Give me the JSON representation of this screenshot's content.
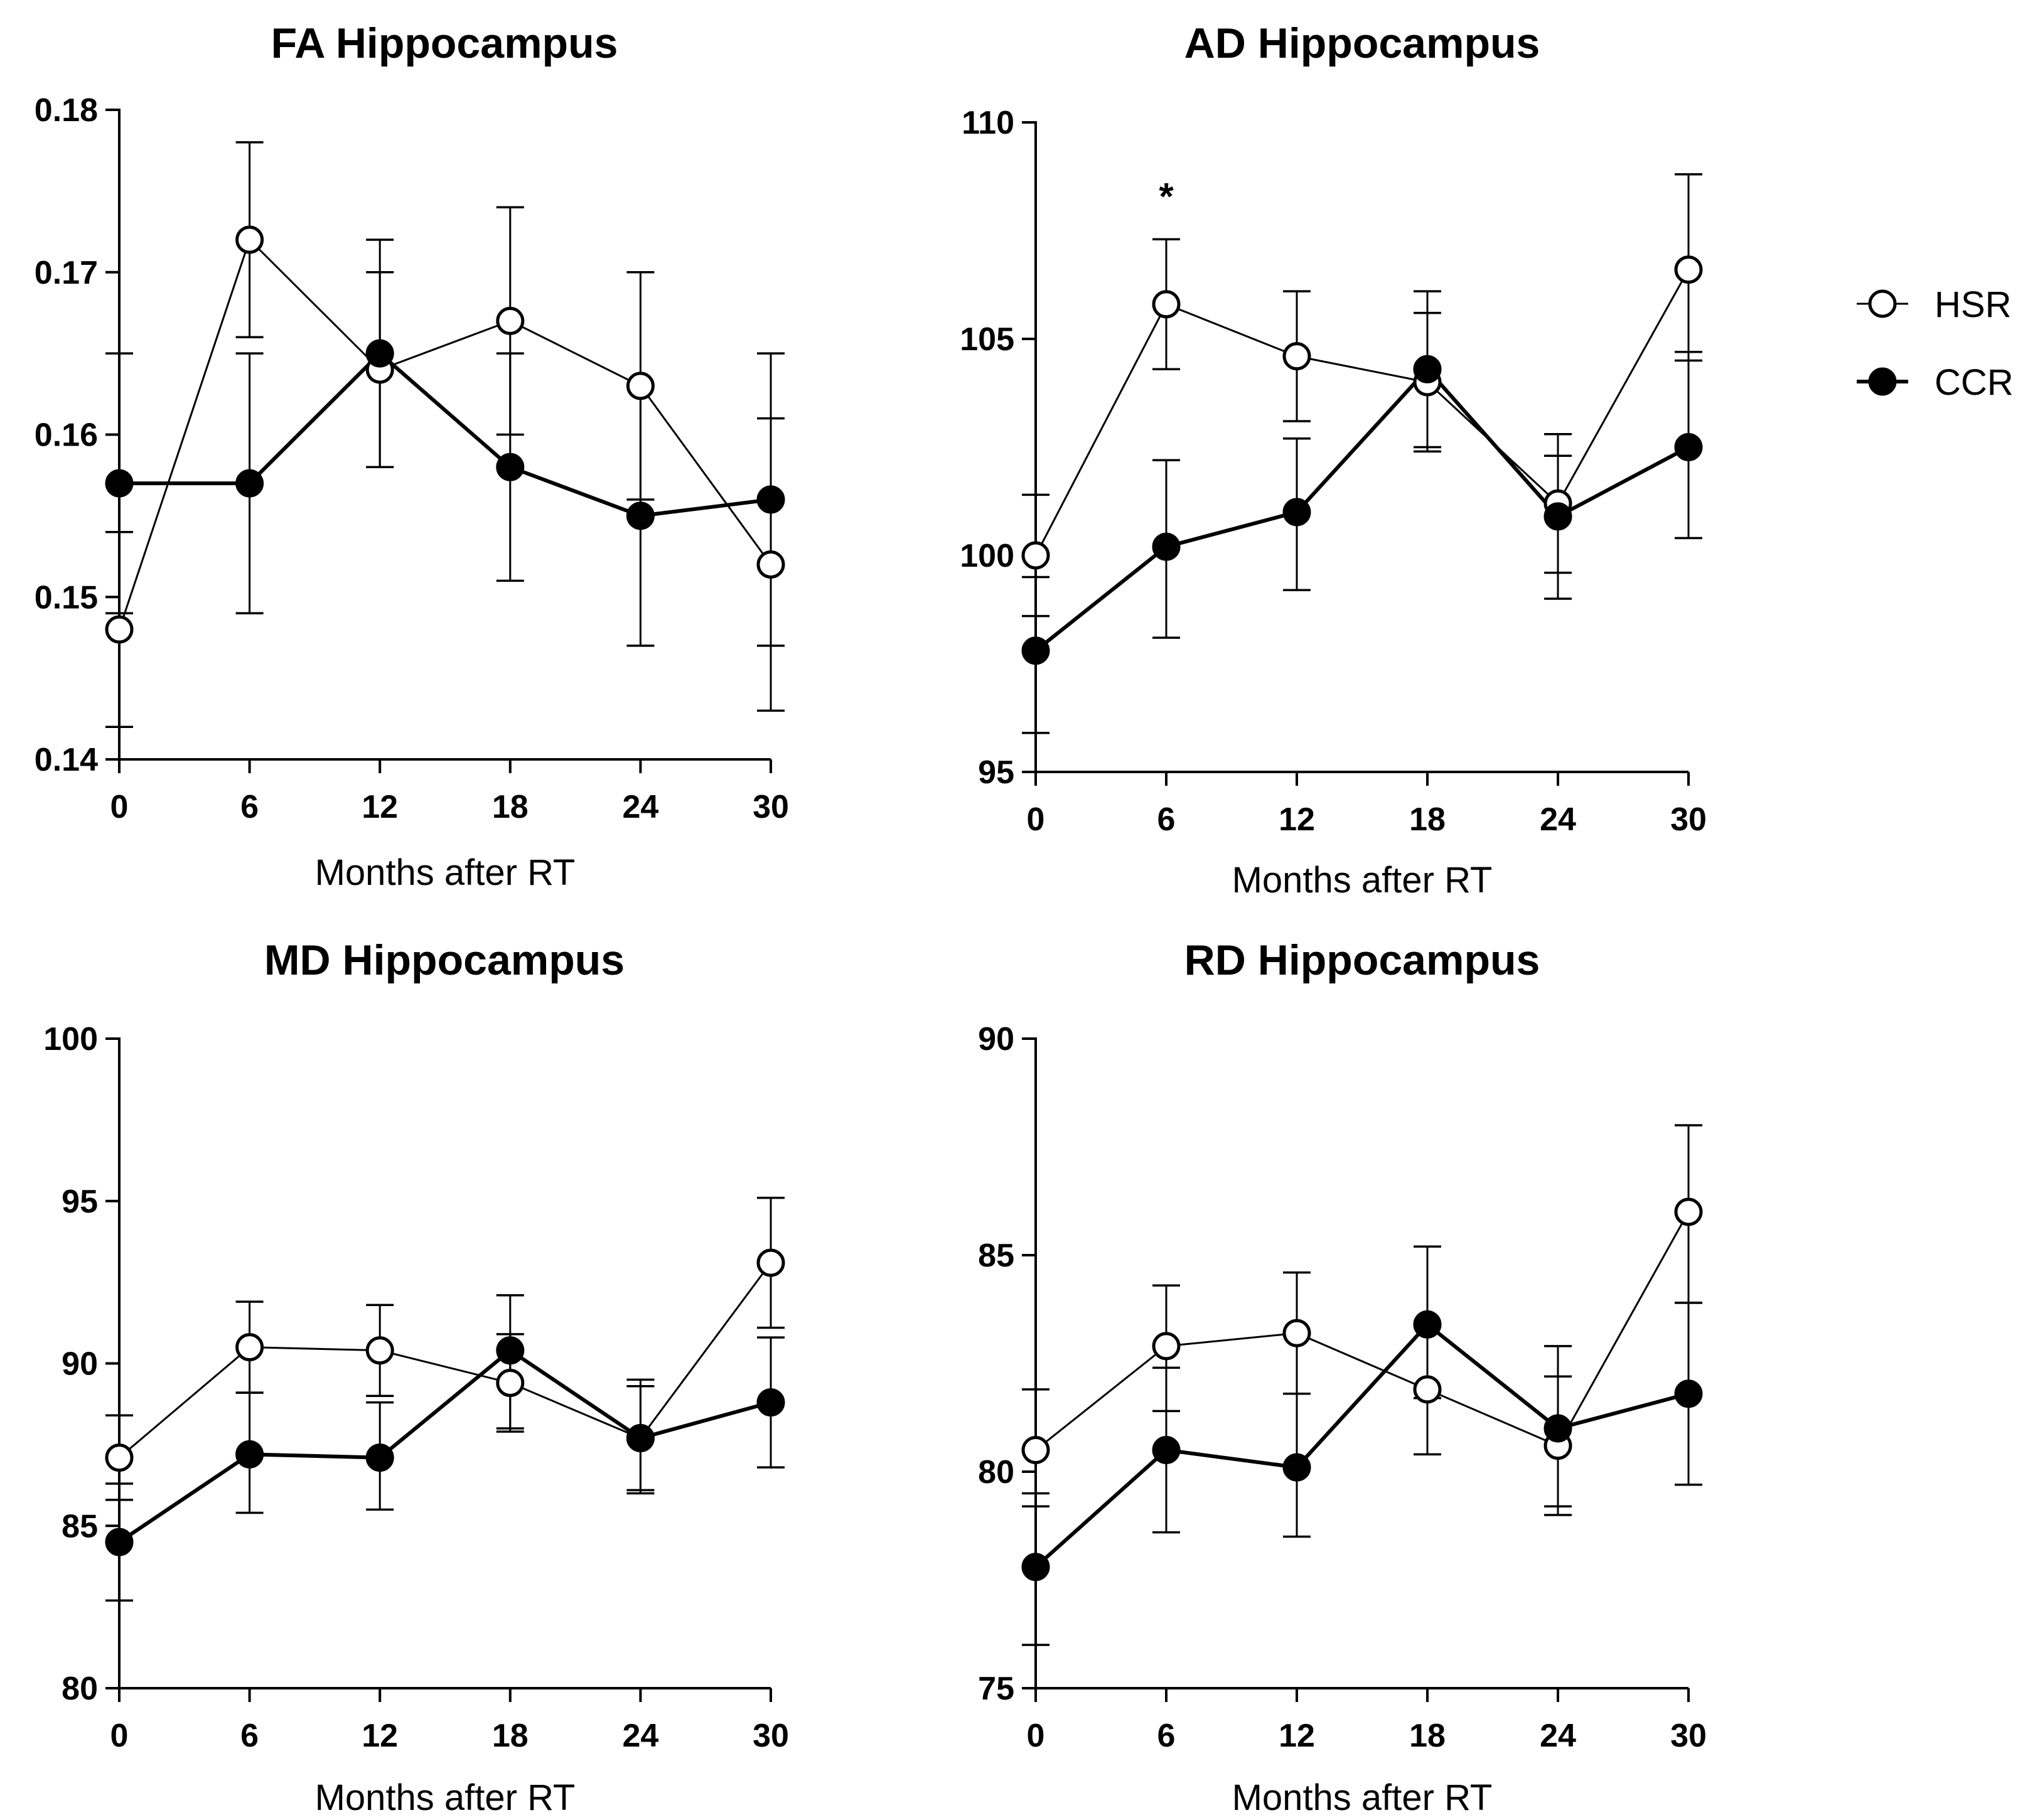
{
  "legend": {
    "items": [
      {
        "label": "HSR",
        "marker": "open-circle",
        "color": "#000000"
      },
      {
        "label": "CCR",
        "marker": "filled-circle",
        "color": "#000000"
      }
    ]
  },
  "chart_data": [
    {
      "type": "line",
      "title": "FA Hippocampus",
      "xlabel": "Months after RT",
      "ylabel": "",
      "x": [
        0,
        6,
        12,
        18,
        24,
        30
      ],
      "xticks": [
        "0",
        "6",
        "12",
        "18",
        "24",
        "30"
      ],
      "ylim": [
        0.14,
        0.18
      ],
      "yticks": [
        0.14,
        0.15,
        0.16,
        0.17,
        0.18
      ],
      "ytick_labels": [
        "0.14",
        "0.15",
        "0.16",
        "0.17",
        "0.18"
      ],
      "series": [
        {
          "name": "HSR",
          "values": [
            0.148,
            0.172,
            0.164,
            0.167,
            0.163,
            0.152
          ],
          "err_low": [
            0.142,
            0.166,
            0.158,
            0.16,
            0.156,
            0.143
          ],
          "err_high": [
            0.154,
            0.178,
            0.17,
            0.174,
            0.17,
            0.161
          ]
        },
        {
          "name": "CCR",
          "values": [
            0.157,
            0.157,
            0.165,
            0.158,
            0.155,
            0.156
          ],
          "err_low": [
            0.149,
            0.149,
            0.158,
            0.151,
            0.147,
            0.147
          ],
          "err_high": [
            0.165,
            0.165,
            0.172,
            0.165,
            0.163,
            0.165
          ]
        }
      ],
      "annotations": []
    },
    {
      "type": "line",
      "title": "AD Hippocampus",
      "xlabel": "Months after RT",
      "ylabel": "",
      "x": [
        0,
        6,
        12,
        18,
        24,
        30
      ],
      "xticks": [
        "0",
        "6",
        "12",
        "18",
        "24",
        "30"
      ],
      "ylim": [
        95,
        110
      ],
      "yticks": [
        95,
        100,
        105,
        110
      ],
      "ytick_labels": [
        "95",
        "100",
        "105",
        "110"
      ],
      "series": [
        {
          "name": "HSR",
          "values": [
            100.0,
            105.8,
            104.6,
            104.0,
            101.2,
            106.6
          ],
          "err_low": [
            98.6,
            104.3,
            103.1,
            102.5,
            99.6,
            104.5
          ],
          "err_high": [
            101.4,
            107.3,
            106.1,
            105.6,
            102.8,
            108.8
          ]
        },
        {
          "name": "CCR",
          "values": [
            97.8,
            100.2,
            101.0,
            104.3,
            100.9,
            102.5
          ],
          "err_low": [
            95.9,
            98.1,
            99.2,
            102.4,
            99.0,
            100.4
          ],
          "err_high": [
            99.5,
            102.2,
            102.7,
            106.1,
            102.3,
            104.7
          ]
        }
      ],
      "annotations": [
        {
          "text": "*",
          "x": 6,
          "y": 108.4
        }
      ]
    },
    {
      "type": "line",
      "title": "MD Hippocampus",
      "xlabel": "Months after RT",
      "ylabel": "",
      "x": [
        0,
        6,
        12,
        18,
        24,
        30
      ],
      "xticks": [
        "0",
        "6",
        "12",
        "18",
        "24",
        "30"
      ],
      "ylim": [
        80,
        100
      ],
      "yticks": [
        80,
        85,
        90,
        95,
        100
      ],
      "ytick_labels": [
        "80",
        "85",
        "90",
        "95",
        "100"
      ],
      "series": [
        {
          "name": "HSR",
          "values": [
            87.1,
            90.5,
            90.4,
            89.4,
            87.7,
            93.1
          ],
          "err_low": [
            85.8,
            89.1,
            89.0,
            88.0,
            86.1,
            91.1
          ],
          "err_high": [
            88.4,
            91.9,
            91.8,
            90.9,
            89.5,
            95.1
          ]
        },
        {
          "name": "CCR",
          "values": [
            84.5,
            87.2,
            87.1,
            90.4,
            87.7,
            88.8
          ],
          "err_low": [
            82.7,
            85.4,
            85.5,
            87.9,
            86.0,
            86.8
          ],
          "err_high": [
            86.3,
            89.1,
            88.8,
            92.1,
            89.3,
            90.8
          ]
        }
      ],
      "annotations": []
    },
    {
      "type": "line",
      "title": "RD Hippocampus",
      "xlabel": "Months after RT",
      "ylabel": "",
      "x": [
        0,
        6,
        12,
        18,
        24,
        30
      ],
      "xticks": [
        "0",
        "6",
        "12",
        "18",
        "24",
        "30"
      ],
      "ylim": [
        75,
        90
      ],
      "yticks": [
        75,
        80,
        85,
        90
      ],
      "ytick_labels": [
        "75",
        "80",
        "85",
        "90"
      ],
      "series": [
        {
          "name": "HSR",
          "values": [
            80.5,
            82.9,
            83.2,
            81.9,
            80.6,
            86.0
          ],
          "err_low": [
            79.2,
            81.4,
            81.8,
            80.4,
            79.0,
            83.9
          ],
          "err_high": [
            81.9,
            84.3,
            84.6,
            83.4,
            82.2,
            88.0
          ]
        },
        {
          "name": "CCR",
          "values": [
            77.8,
            80.5,
            80.1,
            83.4,
            81.0,
            81.8
          ],
          "err_low": [
            76.0,
            78.6,
            78.5,
            81.7,
            79.2,
            79.7
          ],
          "err_high": [
            79.5,
            82.4,
            81.8,
            85.2,
            82.9,
            83.9
          ]
        }
      ],
      "annotations": []
    }
  ]
}
